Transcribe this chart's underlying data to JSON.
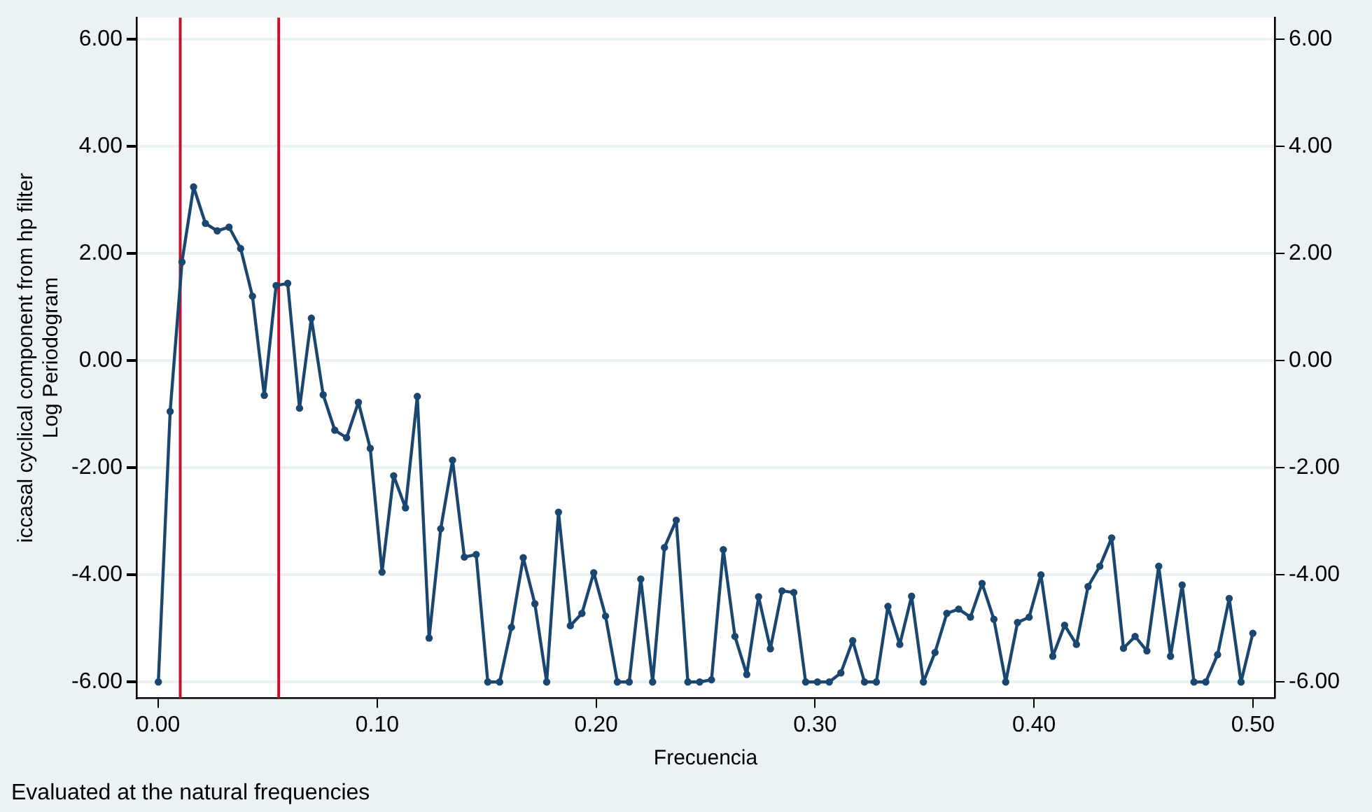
{
  "chart_data": {
    "type": "line",
    "xlabel": "Frecuencia",
    "ylabel": "iccasal cyclical component from hp filter\nLog Periodogram",
    "annotations": [
      "Evaluated at the natural frequencies"
    ],
    "series": [
      {
        "color": "#1a476f",
        "x": [
          0,
          0.0054,
          0.0108,
          0.0161,
          0.0215,
          0.0269,
          0.0323,
          0.0376,
          0.043,
          0.0484,
          0.0538,
          0.0591,
          0.0645,
          0.0699,
          0.0753,
          0.0806,
          0.086,
          0.0914,
          0.0968,
          0.1022,
          0.1075,
          0.1129,
          0.1183,
          0.1237,
          0.129,
          0.1344,
          0.1398,
          0.1452,
          0.1505,
          0.1559,
          0.1613,
          0.1667,
          0.172,
          0.1774,
          0.1828,
          0.1882,
          0.1935,
          0.1989,
          0.2043,
          0.2097,
          0.2151,
          0.2204,
          0.2258,
          0.2312,
          0.2366,
          0.2419,
          0.2473,
          0.2527,
          0.2581,
          0.2634,
          0.2688,
          0.2742,
          0.2796,
          0.2849,
          0.2903,
          0.2957,
          0.3011,
          0.3065,
          0.3118,
          0.3172,
          0.3226,
          0.328,
          0.3333,
          0.3387,
          0.3441,
          0.3495,
          0.3548,
          0.3602,
          0.3656,
          0.371,
          0.3763,
          0.3817,
          0.3871,
          0.3925,
          0.3978,
          0.4032,
          0.4086,
          0.414,
          0.4194,
          0.4247,
          0.4301,
          0.4355,
          0.4409,
          0.4462,
          0.4516,
          0.457,
          0.4624,
          0.4677,
          0.4731,
          0.4785,
          0.4839,
          0.4892,
          0.4946,
          0.5
        ],
        "values": [
          -6,
          -0.95,
          1.84,
          3.24,
          2.56,
          2.42,
          2.49,
          2.09,
          1.2,
          -0.65,
          1.4,
          1.44,
          -0.89,
          0.79,
          -0.64,
          -1.3,
          -1.44,
          -0.78,
          -1.64,
          -3.95,
          -2.15,
          -2.75,
          -0.67,
          -5.18,
          -3.14,
          -1.86,
          -3.67,
          -3.62,
          -6,
          -6,
          -4.98,
          -3.68,
          -4.54,
          -6,
          -2.83,
          -4.95,
          -4.72,
          -3.96,
          -4.77,
          -6,
          -6,
          -4.08,
          -6,
          -3.49,
          -2.98,
          -6,
          -6,
          -5.96,
          -3.53,
          -5.15,
          -5.86,
          -4.41,
          -5.38,
          -4.3,
          -4.33,
          -6,
          -6,
          -6,
          -5.83,
          -5.23,
          -6,
          -6,
          -4.59,
          -5.3,
          -4.4,
          -6,
          -5.45,
          -4.72,
          -4.64,
          -4.79,
          -4.16,
          -4.83,
          -6,
          -4.89,
          -4.79,
          -4,
          -5.52,
          -4.94,
          -5.3,
          -4.22,
          -3.84,
          -3.31,
          -5.37,
          -5.15,
          -5.42,
          -3.84,
          -5.52,
          -4.19,
          -6,
          -6,
          -5.49,
          -4.44,
          -6,
          -5.09
        ]
      }
    ],
    "ref_lines": [
      {
        "axis": "x",
        "value": 0.01,
        "color": "#c8102e"
      },
      {
        "axis": "x",
        "value": 0.055,
        "color": "#c8102e"
      }
    ],
    "xlim": [
      -0.01,
      0.51
    ],
    "xticks": [
      {
        "value": 0,
        "label": "0.00"
      },
      {
        "value": 0.1,
        "label": "0.10"
      },
      {
        "value": 0.2,
        "label": "0.20"
      },
      {
        "value": 0.3,
        "label": "0.30"
      },
      {
        "value": 0.4,
        "label": "0.40"
      },
      {
        "value": 0.5,
        "label": "0.50"
      }
    ],
    "ylim": [
      -6.3,
      6.4
    ],
    "yticks": [
      {
        "value": -6,
        "label": "-6.00"
      },
      {
        "value": -4,
        "label": "-4.00"
      },
      {
        "value": -2,
        "label": "-2.00"
      },
      {
        "value": 0,
        "label": "0.00"
      },
      {
        "value": 2,
        "label": "2.00"
      },
      {
        "value": 4,
        "label": "4.00"
      },
      {
        "value": 6,
        "label": "6.00"
      }
    ],
    "y2lim": [
      -6.3,
      6.4
    ],
    "y2ticks": [
      {
        "value": -6,
        "label": "-6.00"
      },
      {
        "value": -4,
        "label": "-4.00"
      },
      {
        "value": -2,
        "label": "-2.00"
      },
      {
        "value": 0,
        "label": "0.00"
      },
      {
        "value": 2,
        "label": "2.00"
      },
      {
        "value": 4,
        "label": "4.00"
      },
      {
        "value": 6,
        "label": "6.00"
      }
    ],
    "grid": "y",
    "legend": false,
    "marker": "circle",
    "line_style": "solid"
  }
}
